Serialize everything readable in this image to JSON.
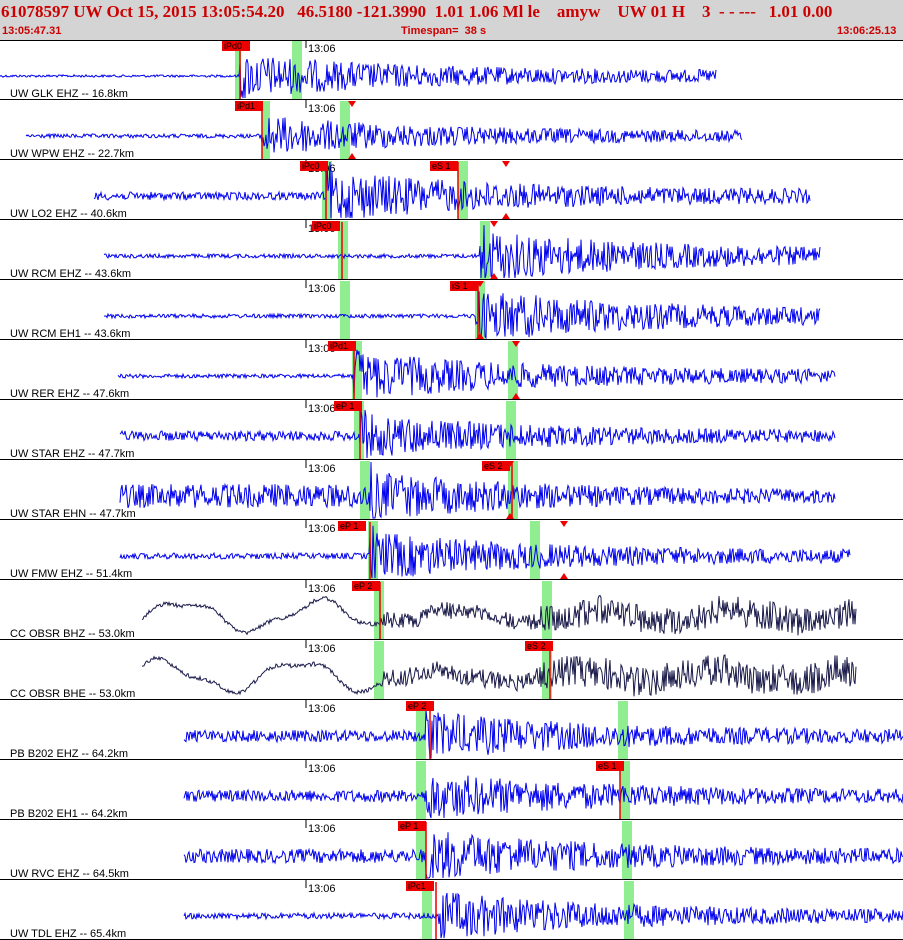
{
  "header": {
    "title": "61078597 UW Oct 15, 2015 13:05:54.20   46.5180 -121.3990  1.01 1.06 Ml le    amyw    UW 01 H    3  - - ---   1.01 0.00",
    "start_time": "13:05:47.31",
    "timespan": "Timespan=  38 s",
    "end_time": "13:06:25.13"
  },
  "colors": {
    "trace": "#0000ee",
    "trace_dark": "#1a1a4a",
    "pick_flag": "#ee0000",
    "window": "#90ee90",
    "header_bg": "#d4d4d4",
    "header_text": "#cc0000"
  },
  "time_tick_label": "13:06",
  "traces": [
    {
      "label": "UW GLK EHZ -- 16.8km",
      "picks": [
        {
          "label": "iPd0"
        }
      ],
      "style": "blue"
    },
    {
      "label": "UW WPW EHZ -- 22.7km",
      "picks": [
        {
          "label": "iPd1"
        }
      ],
      "style": "blue"
    },
    {
      "label": "UW LO2 EHZ -- 40.6km",
      "picks": [
        {
          "label": "iPc0"
        },
        {
          "label": "eS 1"
        }
      ],
      "style": "blue"
    },
    {
      "label": "UW RCM EHZ -- 43.6km",
      "picks": [
        {
          "label": "iPc0"
        }
      ],
      "style": "blue"
    },
    {
      "label": "UW RCM EH1 -- 43.6km",
      "picks": [
        {
          "label": "iS 1"
        }
      ],
      "style": "blue"
    },
    {
      "label": "UW RER EHZ -- 47.6km",
      "picks": [
        {
          "label": "iPd1"
        }
      ],
      "style": "blue"
    },
    {
      "label": "UW STAR EHZ -- 47.7km",
      "picks": [
        {
          "label": "eP 1"
        }
      ],
      "style": "blue"
    },
    {
      "label": "UW STAR EHN -- 47.7km",
      "picks": [
        {
          "label": "eS 2"
        }
      ],
      "style": "blue"
    },
    {
      "label": "UW FMW EHZ -- 51.4km",
      "picks": [
        {
          "label": "eP 1"
        }
      ],
      "style": "blue"
    },
    {
      "label": "CC OBSR BHZ -- 53.0km",
      "picks": [
        {
          "label": "eP 2"
        }
      ],
      "style": "dark"
    },
    {
      "label": "CC OBSR BHE -- 53.0km",
      "picks": [
        {
          "label": "eS 2"
        }
      ],
      "style": "dark"
    },
    {
      "label": "PB B202 EHZ -- 64.2km",
      "picks": [
        {
          "label": "eP 2"
        }
      ],
      "style": "blue"
    },
    {
      "label": "PB B202 EH1 -- 64.2km",
      "picks": [
        {
          "label": "eS 1"
        }
      ],
      "style": "blue"
    },
    {
      "label": "UW RVC EHZ -- 64.5km",
      "picks": [
        {
          "label": "eP 1"
        }
      ],
      "style": "blue"
    },
    {
      "label": "UW TDL EHZ -- 65.4km",
      "picks": [
        {
          "label": "iPc1"
        }
      ],
      "style": "blue"
    }
  ]
}
